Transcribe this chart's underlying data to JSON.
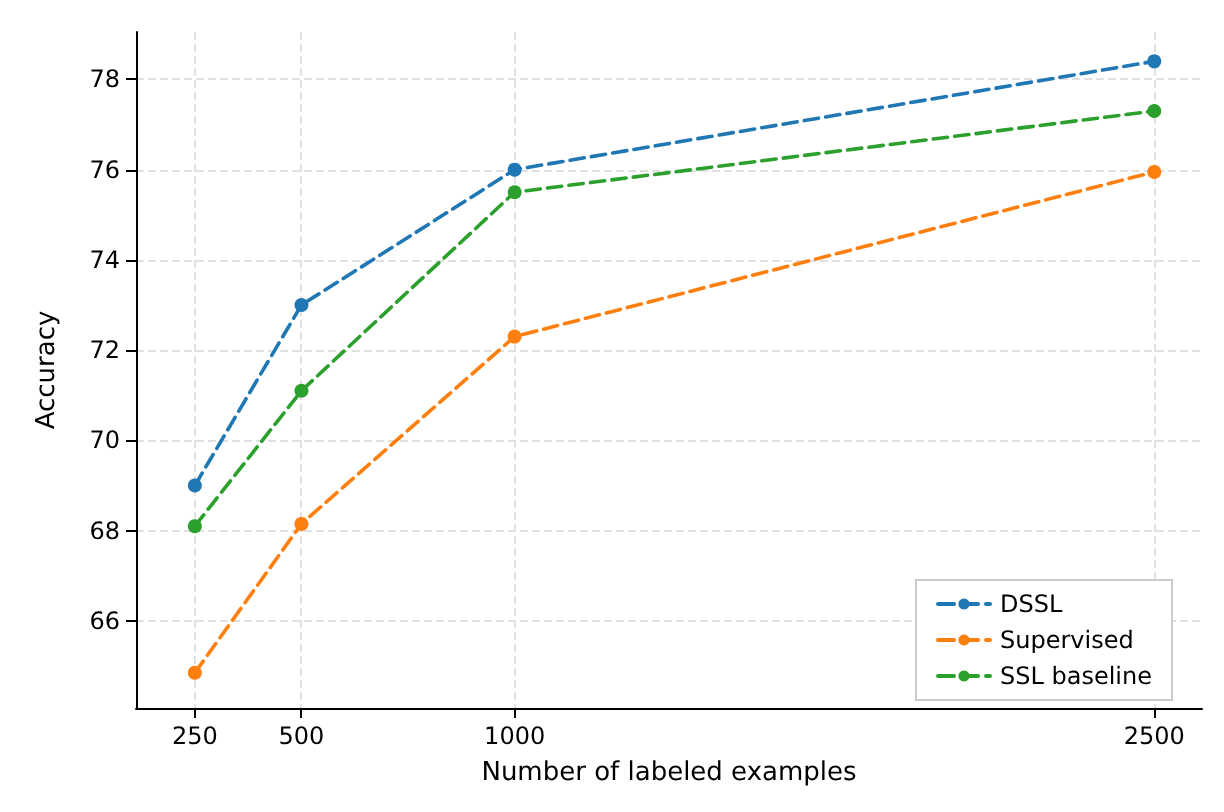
{
  "chart_data": {
    "type": "line",
    "xlabel": "Number of labeled examples",
    "ylabel": "Accuracy",
    "x": [
      250,
      500,
      1000,
      2500
    ],
    "series": [
      {
        "name": "DSSL",
        "color": "#1f77b4",
        "values": [
          69.0,
          73.0,
          76.0,
          78.4
        ]
      },
      {
        "name": "Supervised",
        "color": "#ff7f0e",
        "values": [
          64.85,
          68.15,
          72.3,
          75.95
        ]
      },
      {
        "name": "SSL baseline",
        "color": "#2ca02c",
        "values": [
          68.1,
          71.1,
          75.5,
          77.3
        ]
      }
    ],
    "xlim": [
      112,
      2612
    ],
    "ylim": [
      64.07,
      79.05
    ],
    "xticks": [
      250,
      500,
      1000,
      2500
    ],
    "yticks": [
      66,
      68,
      70,
      72,
      74,
      76,
      78
    ],
    "grid": true,
    "legend": "bottom right",
    "marker": "circle",
    "line_style": "dashed"
  }
}
